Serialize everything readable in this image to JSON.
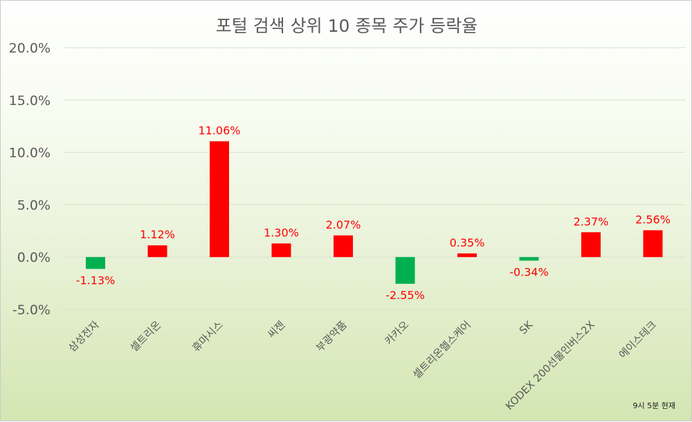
{
  "chart_data": {
    "type": "bar",
    "title": "포털 검색 상위 10 종목 주가 등락율",
    "categories": [
      "삼성전자",
      "셀트리온",
      "휴마시스",
      "씨젠",
      "부광약품",
      "카카오",
      "셀트리온헬스케어",
      "SK",
      "KODEX 200선물인버스2X",
      "에이스테크"
    ],
    "values": [
      -1.13,
      1.12,
      11.06,
      1.3,
      2.07,
      -2.55,
      0.35,
      -0.34,
      2.37,
      2.56
    ],
    "data_labels": [
      "-1.13%",
      "1.12%",
      "11.06%",
      "1.30%",
      "2.07%",
      "-2.55%",
      "0.35%",
      "-0.34%",
      "2.37%",
      "2.56%"
    ],
    "y_ticks": [
      20,
      15,
      10,
      5,
      0,
      -5
    ],
    "y_tick_labels": [
      "20.0%",
      "15.0%",
      "10.0%",
      "5.0%",
      "0.0%",
      "-5.0%"
    ],
    "ylim": [
      -5,
      20
    ],
    "xlabel": "",
    "ylabel": "",
    "grid": true,
    "colors": {
      "positive": "#ff0000",
      "negative": "#00b050",
      "label": "#ff0000"
    },
    "note": "9시 5분 현재"
  }
}
